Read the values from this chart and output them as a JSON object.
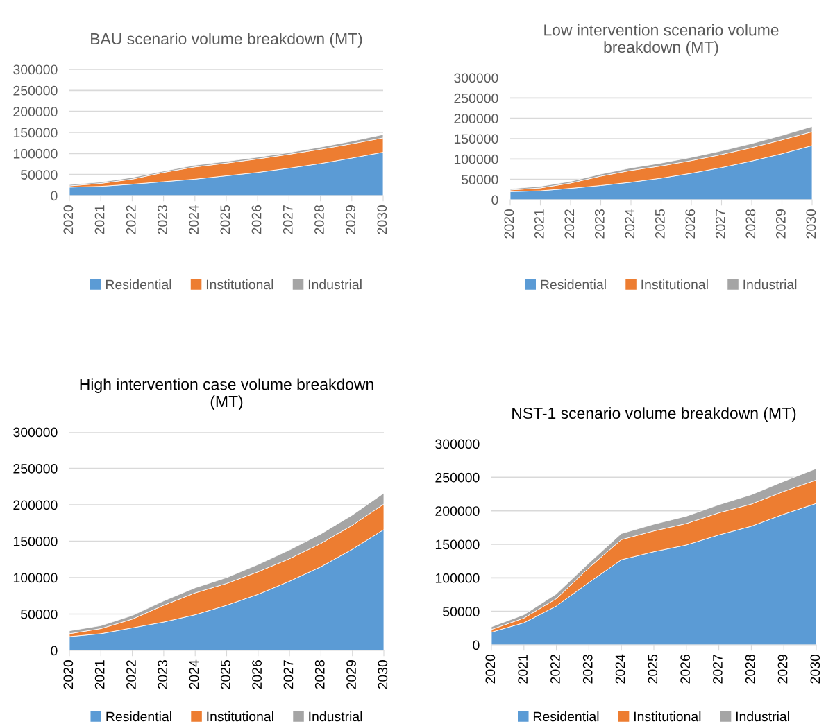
{
  "chart_data": [
    {
      "type": "area",
      "title": "BAU scenario volume breakdown (MT)",
      "stacked": true,
      "grid": "y",
      "legend": "bottom",
      "categories": [
        "2020",
        "2021",
        "2022",
        "2023",
        "2024",
        "2025",
        "2026",
        "2027",
        "2028",
        "2029",
        "2030"
      ],
      "ylim": [
        0,
        300000
      ],
      "yticks": [
        0,
        50000,
        100000,
        150000,
        200000,
        250000,
        300000
      ],
      "series": [
        {
          "name": "Residential",
          "color": "#5b9bd5",
          "values": [
            20000,
            22000,
            27000,
            33000,
            39000,
            47000,
            55000,
            65000,
            76000,
            89000,
            103000
          ]
        },
        {
          "name": "Institutional",
          "color": "#ed7d31",
          "values": [
            3000,
            7000,
            12000,
            22000,
            29000,
            30000,
            32000,
            33000,
            34000,
            34000,
            34000
          ]
        },
        {
          "name": "Industrial",
          "color": "#a5a5a5",
          "values": [
            3000,
            3000,
            4000,
            3000,
            4000,
            4000,
            4000,
            4000,
            5000,
            6000,
            8000
          ]
        }
      ]
    },
    {
      "type": "area",
      "title": "Low intervention scenario volume breakdown (MT)",
      "stacked": true,
      "grid": "y",
      "legend": "bottom",
      "categories": [
        "2020",
        "2021",
        "2022",
        "2023",
        "2024",
        "2025",
        "2026",
        "2027",
        "2028",
        "2029",
        "2030"
      ],
      "ylim": [
        0,
        300000
      ],
      "yticks": [
        0,
        50000,
        100000,
        150000,
        200000,
        250000,
        300000
      ],
      "series": [
        {
          "name": "Residential",
          "color": "#5b9bd5",
          "values": [
            20000,
            22000,
            28000,
            35000,
            43000,
            53000,
            65000,
            79000,
            95000,
            113000,
            133000
          ]
        },
        {
          "name": "Institutional",
          "color": "#ed7d31",
          "values": [
            4000,
            7000,
            13000,
            23000,
            29000,
            30000,
            31000,
            32000,
            33000,
            34000,
            34000
          ]
        },
        {
          "name": "Industrial",
          "color": "#a5a5a5",
          "values": [
            3000,
            4000,
            4000,
            5000,
            6000,
            7000,
            8000,
            9000,
            10000,
            11000,
            13000
          ]
        }
      ]
    },
    {
      "type": "area",
      "title": "High intervention case volume breakdown (MT)",
      "stacked": true,
      "grid": "y",
      "legend": "bottom",
      "categories": [
        "2020",
        "2021",
        "2022",
        "2023",
        "2024",
        "2025",
        "2026",
        "2027",
        "2028",
        "2029",
        "2030"
      ],
      "ylim": [
        0,
        300000
      ],
      "yticks": [
        0,
        50000,
        100000,
        150000,
        200000,
        250000,
        300000
      ],
      "series": [
        {
          "name": "Residential",
          "color": "#5b9bd5",
          "values": [
            19000,
            23000,
            31000,
            39000,
            49000,
            62000,
            77000,
            95000,
            115000,
            139000,
            166000
          ]
        },
        {
          "name": "Institutional",
          "color": "#ed7d31",
          "values": [
            4000,
            7000,
            12000,
            23000,
            30000,
            30000,
            31000,
            31000,
            32000,
            33000,
            35000
          ]
        },
        {
          "name": "Industrial",
          "color": "#a5a5a5",
          "values": [
            4000,
            4000,
            5000,
            6000,
            7000,
            8000,
            10000,
            12000,
            13000,
            14000,
            15000
          ]
        }
      ]
    },
    {
      "type": "area",
      "title": "NST-1 scenario volume breakdown (MT)",
      "stacked": true,
      "grid": "y",
      "legend": "bottom",
      "categories": [
        "2020",
        "2021",
        "2022",
        "2023",
        "2024",
        "2025",
        "2026",
        "2027",
        "2028",
        "2029",
        "2030"
      ],
      "ylim": [
        0,
        300000
      ],
      "yticks": [
        0,
        50000,
        100000,
        150000,
        200000,
        250000,
        300000
      ],
      "series": [
        {
          "name": "Residential",
          "color": "#5b9bd5",
          "values": [
            19000,
            33000,
            58000,
            93000,
            127000,
            139000,
            149000,
            164000,
            177000,
            195000,
            211000
          ]
        },
        {
          "name": "Institutional",
          "color": "#ed7d31",
          "values": [
            4000,
            7000,
            11000,
            22000,
            30000,
            31000,
            32000,
            33000,
            33000,
            34000,
            35000
          ]
        },
        {
          "name": "Industrial",
          "color": "#a5a5a5",
          "values": [
            4000,
            5000,
            7000,
            7000,
            9000,
            10000,
            11000,
            12000,
            14000,
            15000,
            17000
          ]
        }
      ]
    }
  ]
}
